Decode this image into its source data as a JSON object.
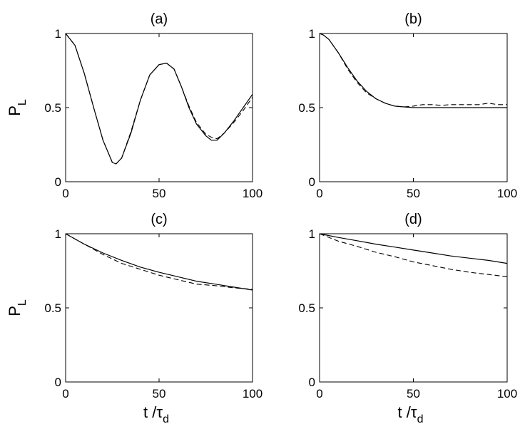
{
  "chart_data": [
    {
      "type": "line",
      "title": "(a)",
      "ylabel": "P",
      "ylabel_sub": "L",
      "xlabel": "",
      "xlabel_sub": "",
      "xlim": [
        0,
        100
      ],
      "ylim": [
        0,
        1
      ],
      "x_ticks": [
        0,
        50,
        100
      ],
      "y_ticks": [
        0,
        0.5,
        1
      ],
      "x_tick_labels": [
        "0",
        "50",
        "100"
      ],
      "y_tick_labels": [
        "0",
        "0.5",
        "1"
      ],
      "grid": false,
      "series": [
        {
          "style": "solid",
          "x": [
            0,
            5,
            10,
            15,
            20,
            25,
            27,
            30,
            35,
            40,
            45,
            50,
            54,
            58,
            62,
            66,
            70,
            75,
            78,
            81,
            85,
            90,
            95,
            100
          ],
          "y": [
            1.0,
            0.92,
            0.73,
            0.5,
            0.28,
            0.13,
            0.12,
            0.16,
            0.33,
            0.55,
            0.72,
            0.79,
            0.8,
            0.76,
            0.64,
            0.5,
            0.39,
            0.31,
            0.28,
            0.28,
            0.33,
            0.41,
            0.5,
            0.59
          ]
        },
        {
          "style": "dashed",
          "x": [
            0,
            5,
            10,
            15,
            20,
            25,
            27,
            30,
            35,
            40,
            45,
            50,
            54,
            58,
            62,
            66,
            70,
            75,
            78,
            81,
            85,
            90,
            95,
            100
          ],
          "y": [
            1.0,
            0.92,
            0.73,
            0.5,
            0.28,
            0.13,
            0.12,
            0.16,
            0.34,
            0.55,
            0.72,
            0.79,
            0.8,
            0.76,
            0.64,
            0.51,
            0.4,
            0.32,
            0.3,
            0.29,
            0.33,
            0.4,
            0.48,
            0.57
          ]
        }
      ]
    },
    {
      "type": "line",
      "title": "(b)",
      "ylabel": "",
      "ylabel_sub": "",
      "xlabel": "",
      "xlabel_sub": "",
      "xlim": [
        0,
        100
      ],
      "ylim": [
        0,
        1
      ],
      "x_ticks": [
        0,
        50,
        100
      ],
      "y_ticks": [
        0,
        0.5,
        1
      ],
      "x_tick_labels": [
        "0",
        "50",
        "100"
      ],
      "y_tick_labels": [
        "0",
        "0.5",
        "1"
      ],
      "grid": false,
      "series": [
        {
          "style": "solid",
          "x": [
            0,
            2,
            5,
            10,
            15,
            20,
            25,
            30,
            35,
            40,
            45,
            50,
            60,
            70,
            80,
            90,
            100
          ],
          "y": [
            1.0,
            0.99,
            0.96,
            0.87,
            0.77,
            0.68,
            0.61,
            0.56,
            0.53,
            0.51,
            0.505,
            0.5,
            0.5,
            0.5,
            0.5,
            0.5,
            0.5
          ]
        },
        {
          "style": "dashed",
          "x": [
            0,
            2,
            5,
            10,
            15,
            20,
            25,
            30,
            35,
            40,
            45,
            50,
            55,
            60,
            65,
            70,
            75,
            80,
            85,
            90,
            95,
            100
          ],
          "y": [
            1.0,
            0.99,
            0.96,
            0.87,
            0.76,
            0.67,
            0.6,
            0.56,
            0.53,
            0.51,
            0.505,
            0.51,
            0.52,
            0.52,
            0.515,
            0.52,
            0.52,
            0.52,
            0.52,
            0.53,
            0.52,
            0.52
          ]
        }
      ]
    },
    {
      "type": "line",
      "title": "(c)",
      "ylabel": "P",
      "ylabel_sub": "L",
      "xlabel": "t /τ",
      "xlabel_sub": "d",
      "xlim": [
        0,
        100
      ],
      "ylim": [
        0,
        1
      ],
      "x_ticks": [
        0,
        50,
        100
      ],
      "y_ticks": [
        0,
        0.5,
        1
      ],
      "x_tick_labels": [
        "0",
        "50",
        "100"
      ],
      "y_tick_labels": [
        "0",
        "0.5",
        "1"
      ],
      "grid": false,
      "series": [
        {
          "style": "solid",
          "x": [
            0,
            10,
            20,
            30,
            40,
            50,
            60,
            70,
            80,
            90,
            100
          ],
          "y": [
            1.0,
            0.93,
            0.87,
            0.82,
            0.775,
            0.74,
            0.71,
            0.68,
            0.66,
            0.64,
            0.62
          ]
        },
        {
          "style": "dashed",
          "x": [
            0,
            10,
            20,
            30,
            40,
            50,
            60,
            70,
            80,
            90,
            100
          ],
          "y": [
            1.0,
            0.93,
            0.86,
            0.8,
            0.76,
            0.72,
            0.69,
            0.66,
            0.65,
            0.635,
            0.625
          ]
        }
      ]
    },
    {
      "type": "line",
      "title": "(d)",
      "ylabel": "",
      "ylabel_sub": "",
      "xlabel": "t /τ",
      "xlabel_sub": "d",
      "xlim": [
        0,
        100
      ],
      "ylim": [
        0,
        1
      ],
      "x_ticks": [
        0,
        50,
        100
      ],
      "y_ticks": [
        0,
        0.5,
        1
      ],
      "x_tick_labels": [
        "0",
        "50",
        "100"
      ],
      "y_tick_labels": [
        "0",
        "0.5",
        "1"
      ],
      "grid": false,
      "series": [
        {
          "style": "solid",
          "x": [
            0,
            10,
            20,
            30,
            40,
            50,
            60,
            70,
            80,
            90,
            100
          ],
          "y": [
            1.0,
            0.975,
            0.953,
            0.93,
            0.91,
            0.89,
            0.87,
            0.85,
            0.835,
            0.82,
            0.8
          ]
        },
        {
          "style": "dashed",
          "x": [
            0,
            10,
            20,
            30,
            40,
            50,
            60,
            70,
            80,
            90,
            100
          ],
          "y": [
            1.0,
            0.95,
            0.915,
            0.875,
            0.845,
            0.81,
            0.785,
            0.76,
            0.74,
            0.725,
            0.71
          ]
        }
      ]
    }
  ]
}
